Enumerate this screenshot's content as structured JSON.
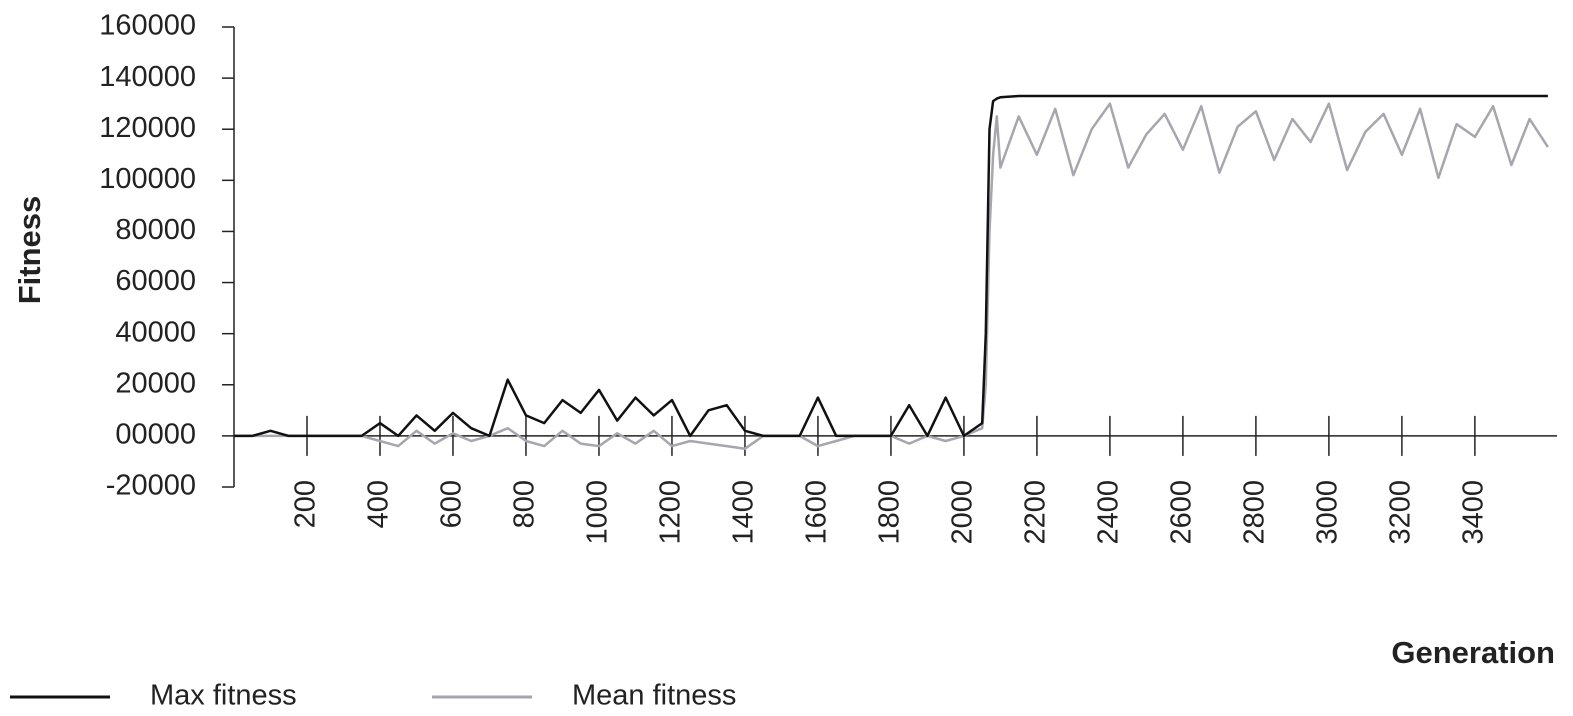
{
  "chart_data": {
    "type": "line",
    "y_label": "Fitness",
    "x_label": "Generation",
    "x": [
      0,
      50,
      100,
      150,
      200,
      250,
      300,
      350,
      400,
      450,
      500,
      550,
      600,
      650,
      700,
      750,
      800,
      850,
      900,
      950,
      1000,
      1050,
      1100,
      1150,
      1200,
      1250,
      1300,
      1350,
      1400,
      1450,
      1500,
      1550,
      1600,
      1650,
      1700,
      1750,
      1800,
      1850,
      1900,
      1950,
      2000,
      2050,
      2060,
      2070,
      2080,
      2090,
      2100,
      2150,
      2200,
      2250,
      2300,
      2350,
      2400,
      2450,
      2500,
      2550,
      2600,
      2650,
      2700,
      2750,
      2800,
      2850,
      2900,
      2950,
      3000,
      3050,
      3100,
      3150,
      3200,
      3250,
      3300,
      3350,
      3400,
      3450,
      3500,
      3550,
      3600
    ],
    "series": [
      {
        "name": "Max fitness",
        "color": "#111111",
        "values": [
          0,
          0,
          2000,
          0,
          0,
          0,
          0,
          0,
          5000,
          0,
          8000,
          2000,
          9000,
          3000,
          0,
          22000,
          8000,
          5000,
          14000,
          9000,
          18000,
          6000,
          15000,
          8000,
          14000,
          0,
          10000,
          12000,
          2000,
          0,
          0,
          0,
          15000,
          0,
          0,
          0,
          0,
          12000,
          0,
          15000,
          0,
          5000,
          40000,
          120000,
          131000,
          132000,
          132500,
          133000,
          133000,
          133000,
          133000,
          133000,
          133000,
          133000,
          133000,
          133000,
          133000,
          133000,
          133000,
          133000,
          133000,
          133000,
          133000,
          133000,
          133000,
          133000,
          133000,
          133000,
          133000,
          133000,
          133000,
          133000,
          133000,
          133000,
          133000,
          133000,
          133000
        ]
      },
      {
        "name": "Mean fitness",
        "color": "#a6a6ae",
        "values": [
          0,
          0,
          0,
          0,
          0,
          0,
          0,
          0,
          -2000,
          -4000,
          2000,
          -3000,
          1000,
          -2000,
          0,
          3000,
          -2000,
          -4000,
          2000,
          -3000,
          -4000,
          1000,
          -3000,
          2000,
          -4000,
          -2000,
          -3000,
          -4000,
          -5000,
          0,
          0,
          0,
          -4000,
          -2000,
          0,
          0,
          0,
          -3000,
          0,
          -2000,
          0,
          3000,
          20000,
          80000,
          110000,
          125000,
          105000,
          125000,
          110000,
          128000,
          102000,
          120000,
          130000,
          105000,
          118000,
          126000,
          112000,
          129000,
          103000,
          121000,
          127000,
          108000,
          124000,
          115000,
          130000,
          104000,
          119000,
          126000,
          110000,
          128000,
          101000,
          122000,
          117000,
          129000,
          106000,
          124000,
          113000
        ]
      }
    ],
    "xlim": [
      0,
      3625
    ],
    "ylim": [
      -20000,
      160000
    ],
    "xticks": [
      200,
      400,
      600,
      800,
      1000,
      1200,
      1400,
      1600,
      1800,
      2000,
      2200,
      2400,
      2600,
      2800,
      3000,
      3200,
      3400
    ],
    "yticks": [
      -20000,
      {
        "value": 0,
        "label": "00000"
      },
      20000,
      40000,
      60000,
      80000,
      100000,
      120000,
      140000,
      160000
    ]
  }
}
